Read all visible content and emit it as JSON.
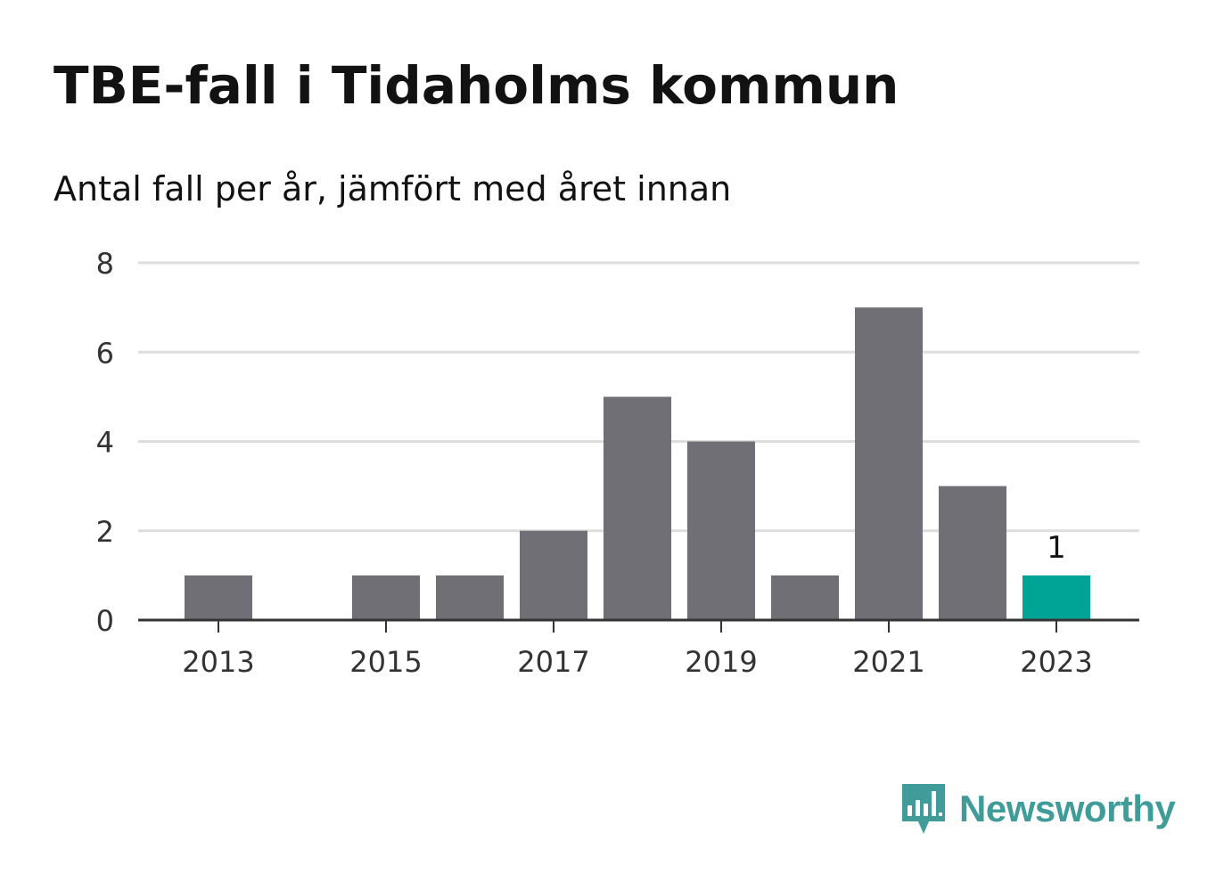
{
  "title": "TBE-fall i Tidaholms kommun",
  "subtitle": "Antal fall per år, jämfört med året innan",
  "brand": {
    "name": "Newsworthy",
    "color": "#3f9c98",
    "logo_icon": "bar-chart-speech-bubble-icon"
  },
  "colors": {
    "bar": "#706f75",
    "highlight": "#00a497",
    "grid": "#dddddd",
    "axis": "#333333"
  },
  "chart_data": {
    "type": "bar",
    "title": "TBE-fall i Tidaholms kommun",
    "subtitle": "Antal fall per år, jämfört med året innan",
    "categories": [
      "2013",
      "2014",
      "2015",
      "2016",
      "2017",
      "2018",
      "2019",
      "2020",
      "2021",
      "2022",
      "2023"
    ],
    "values": [
      1,
      0,
      1,
      1,
      2,
      5,
      4,
      1,
      7,
      3,
      1
    ],
    "highlight_index": 10,
    "data_labels": [
      {
        "index": 10,
        "text": "1"
      }
    ],
    "x_tick_labels": [
      "2013",
      "2015",
      "2017",
      "2019",
      "2021",
      "2023"
    ],
    "y_ticks": [
      0,
      2,
      4,
      6,
      8
    ],
    "ylim": [
      0,
      8
    ],
    "xlabel": "",
    "ylabel": "",
    "grid": true,
    "legend": "none"
  }
}
